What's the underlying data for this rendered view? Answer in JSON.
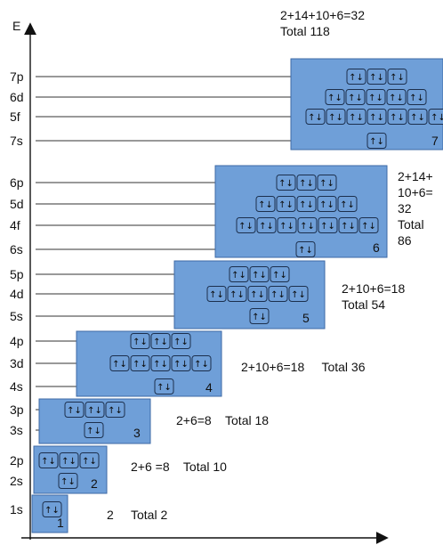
{
  "axis": {
    "y_label": "E"
  },
  "subshells": [
    {
      "id": "1s",
      "label": "1s",
      "orbitals": 1
    },
    {
      "id": "2s",
      "label": "2s",
      "orbitals": 1
    },
    {
      "id": "2p",
      "label": "2p",
      "orbitals": 3
    },
    {
      "id": "3s",
      "label": "3s",
      "orbitals": 1
    },
    {
      "id": "3p",
      "label": "3p",
      "orbitals": 3
    },
    {
      "id": "4s",
      "label": "4s",
      "orbitals": 1
    },
    {
      "id": "3d",
      "label": "3d",
      "orbitals": 5
    },
    {
      "id": "4p",
      "label": "4p",
      "orbitals": 3
    },
    {
      "id": "5s",
      "label": "5s",
      "orbitals": 1
    },
    {
      "id": "4d",
      "label": "4d",
      "orbitals": 5
    },
    {
      "id": "5p",
      "label": "5p",
      "orbitals": 3
    },
    {
      "id": "6s",
      "label": "6s",
      "orbitals": 1
    },
    {
      "id": "4f",
      "label": "4f",
      "orbitals": 7
    },
    {
      "id": "5d",
      "label": "5d",
      "orbitals": 5
    },
    {
      "id": "6p",
      "label": "6p",
      "orbitals": 3
    },
    {
      "id": "7s",
      "label": "7s",
      "orbitals": 1
    },
    {
      "id": "5f",
      "label": "5f",
      "orbitals": 7
    },
    {
      "id": "6d",
      "label": "6d",
      "orbitals": 5
    },
    {
      "id": "7p",
      "label": "7p",
      "orbitals": 3
    }
  ],
  "periods": [
    {
      "number": "1",
      "subshells": [
        "1s"
      ],
      "note_lines": [
        "2     Total 2"
      ]
    },
    {
      "number": "2",
      "subshells": [
        "2s",
        "2p"
      ],
      "note_lines": [
        "2+6 =8    Total 10"
      ]
    },
    {
      "number": "3",
      "subshells": [
        "3s",
        "3p"
      ],
      "note_lines": [
        "2+6=8    Total 18"
      ]
    },
    {
      "number": "4",
      "subshells": [
        "4s",
        "3d",
        "4p"
      ],
      "note_lines": [
        "2+10+6=18     Total 36"
      ]
    },
    {
      "number": "5",
      "subshells": [
        "5s",
        "4d",
        "5p"
      ],
      "note_lines": [
        "2+10+6=18",
        "Total 54"
      ]
    },
    {
      "number": "6",
      "subshells": [
        "6s",
        "4f",
        "5d",
        "6p"
      ],
      "note_lines": [
        "2+14+",
        "10+6=",
        "32",
        "Total",
        "86"
      ]
    },
    {
      "number": "7",
      "subshells": [
        "7s",
        "5f",
        "6d",
        "7p"
      ],
      "note_lines": [
        "2+14+10+6=32",
        "Total 118"
      ]
    }
  ],
  "electron_pair_symbol": "↑↓"
}
